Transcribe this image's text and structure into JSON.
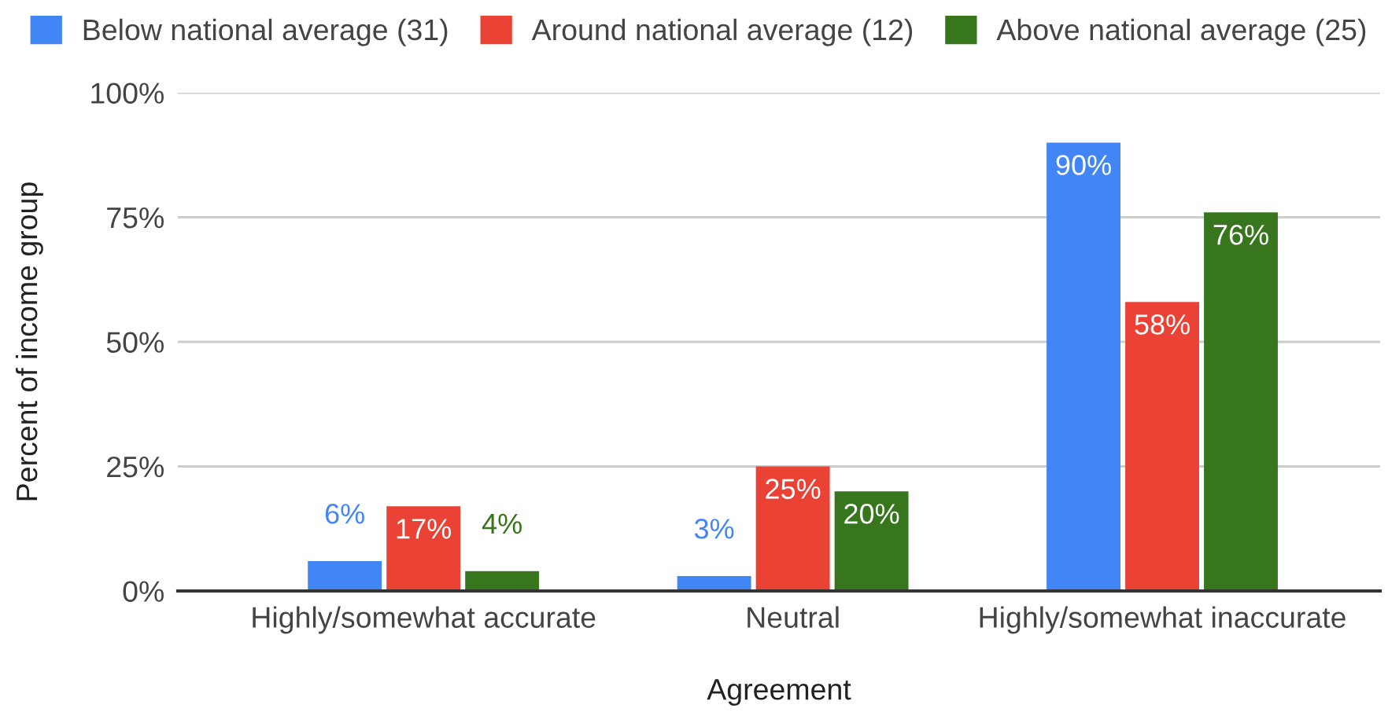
{
  "chart_data": {
    "type": "bar",
    "xlabel": "Agreement",
    "ylabel": "Percent of income group",
    "categories": [
      "Highly/somewhat accurate",
      "Neutral",
      "Highly/somewhat inaccurate"
    ],
    "series": [
      {
        "name": "Below national average (31)",
        "color": "#4285f4",
        "values": [
          6,
          3,
          90
        ],
        "value_labels": [
          "6%",
          "3%",
          "90%"
        ]
      },
      {
        "name": "Around national average (12)",
        "color": "#ea4335",
        "values": [
          17,
          25,
          58
        ],
        "value_labels": [
          "17%",
          "25%",
          "58%"
        ]
      },
      {
        "name": "Above national average (25)",
        "color": "#38761d",
        "values": [
          4,
          20,
          76
        ],
        "value_labels": [
          "4%",
          "20%",
          "76%"
        ]
      }
    ],
    "ylim": [
      0,
      100
    ],
    "yticks": [
      {
        "value": 0,
        "label": "0%"
      },
      {
        "value": 25,
        "label": "25%"
      },
      {
        "value": 50,
        "label": "50%"
      },
      {
        "value": 75,
        "label": "75%"
      },
      {
        "value": 100,
        "label": "100%"
      }
    ],
    "grid": "y",
    "legend": "top"
  }
}
